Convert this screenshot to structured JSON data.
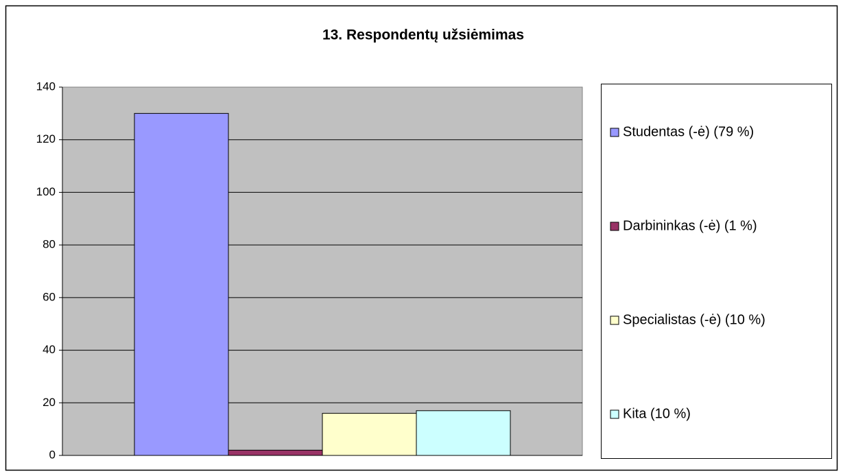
{
  "chart_data": {
    "type": "bar",
    "title": "13. Respondentų užsiėmimas",
    "categories": [
      null
    ],
    "series": [
      {
        "name": "Studentas (-ė) (79 %)",
        "color": "#9999ff",
        "values": [
          130
        ]
      },
      {
        "name": "Darbininkas (-ė) (1 %)",
        "color": "#993366",
        "values": [
          2
        ]
      },
      {
        "name": "Specialistas (-ė) (10 %)",
        "color": "#ffffcc",
        "values": [
          16
        ]
      },
      {
        "name": "Kita (10 %)",
        "color": "#ccffff",
        "values": [
          17
        ]
      }
    ],
    "ylim": [
      0,
      140
    ],
    "yticks": [
      0,
      20,
      40,
      60,
      80,
      100,
      120,
      140
    ],
    "grid": true,
    "legend": "right"
  }
}
